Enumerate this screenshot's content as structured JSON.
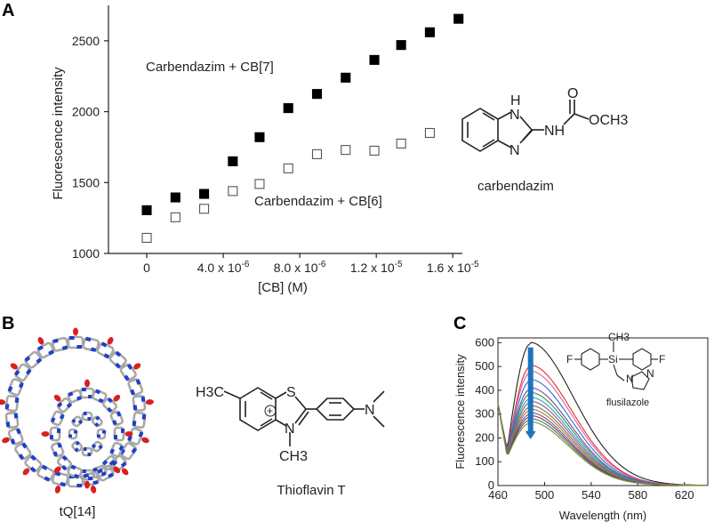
{
  "panels": {
    "A": "A",
    "B": "B",
    "C": "C"
  },
  "chart_data": [
    {
      "type": "scatter",
      "panel": "A",
      "xlabel": "[CB] (M)",
      "ylabel": "Fluorescence intensity",
      "xlim": [
        -2e-06,
        1.65e-05
      ],
      "ylim": [
        1000,
        2750
      ],
      "x_tick_labels": [
        "0",
        "4.0 x 10-6",
        "8.0 x 10-6",
        "1.2 x 10-5",
        "1.6 x 10-5"
      ],
      "x_tick_values": [
        0,
        4e-06,
        8e-06,
        1.2e-05,
        1.6e-05
      ],
      "x_tick_mantissa": [
        "0",
        "4.0 x 10",
        "8.0 x 10",
        "1.2 x 10",
        "1.6 x 10"
      ],
      "x_tick_exponent": [
        "",
        "-6",
        "-6",
        "-5",
        "-5"
      ],
      "y_ticks": [
        1000,
        1500,
        2000,
        2500
      ],
      "grid": false,
      "series": [
        {
          "name": "Carbendazim + CB[7]",
          "marker": "filled-square",
          "x": [
            0,
            1.5e-06,
            3e-06,
            4.5e-06,
            5.9e-06,
            7.4e-06,
            8.9e-06,
            1.04e-05,
            1.19e-05,
            1.33e-05,
            1.48e-05,
            1.63e-05
          ],
          "y": [
            1305,
            1395,
            1420,
            1650,
            1820,
            2025,
            2125,
            2240,
            2365,
            2470,
            2560,
            2655
          ]
        },
        {
          "name": "Carbendazim + CB[6]",
          "marker": "open-square",
          "x": [
            0,
            1.5e-06,
            3e-06,
            4.5e-06,
            5.9e-06,
            7.4e-06,
            8.9e-06,
            1.04e-05,
            1.19e-05,
            1.33e-05,
            1.48e-05
          ],
          "y": [
            1110,
            1255,
            1315,
            1440,
            1490,
            1600,
            1700,
            1730,
            1725,
            1775,
            1850
          ]
        }
      ]
    },
    {
      "type": "line",
      "panel": "C",
      "xlabel": "Wavelength (nm)",
      "ylabel": "Fluorescence intensity",
      "xlim": [
        460,
        640
      ],
      "ylim": [
        0,
        620
      ],
      "x_ticks": [
        460,
        500,
        540,
        580,
        620
      ],
      "y_ticks": [
        0,
        100,
        200,
        300,
        400,
        500,
        600
      ],
      "grid": false,
      "peak_wavelength": 488,
      "series": [
        {
          "color": "#222222",
          "peak": 595
        },
        {
          "color": "#e0302a",
          "peak": 500
        },
        {
          "color": "#e0609a",
          "peak": 475
        },
        {
          "color": "#2a6ed8",
          "peak": 440
        },
        {
          "color": "#7b3fb0",
          "peak": 405
        },
        {
          "color": "#2a9a3a",
          "peak": 385
        },
        {
          "color": "#1ba7c8",
          "peak": 365
        },
        {
          "color": "#c43a8a",
          "peak": 348
        },
        {
          "color": "#3f8f5f",
          "peak": 330
        },
        {
          "color": "#d36c1e",
          "peak": 315
        },
        {
          "color": "#5a5ab0",
          "peak": 300
        },
        {
          "color": "#9a3030",
          "peak": 288
        },
        {
          "color": "#1f7f9f",
          "peak": 275
        },
        {
          "color": "#8a8a20",
          "peak": 262
        }
      ]
    }
  ],
  "structures": {
    "carbendazim": {
      "name": "carbendazim",
      "atoms": {
        "H": "H",
        "N1": "N",
        "N2": "N",
        "NH": "NH",
        "O": "O",
        "OCH3": "OCH3"
      }
    },
    "tq14": {
      "name": "tQ[14]"
    },
    "thioflavin": {
      "name": "Thioflavin T",
      "atoms": {
        "H3C": "H3C",
        "S": "S",
        "N": "N",
        "CH3": "CH3",
        "plus": "+"
      }
    },
    "flusilazole": {
      "name": "flusilazole",
      "atoms": {
        "F1": "F",
        "F2": "F",
        "Si": "Si",
        "CH3": "CH3",
        "N1": "N",
        "N2": "N"
      }
    }
  },
  "colors": {
    "arrow": "#1e73be",
    "tq_carbon": "#a8a8a8",
    "tq_nitrogen": "#1f3fcc",
    "tq_oxygen": "#d82020"
  }
}
